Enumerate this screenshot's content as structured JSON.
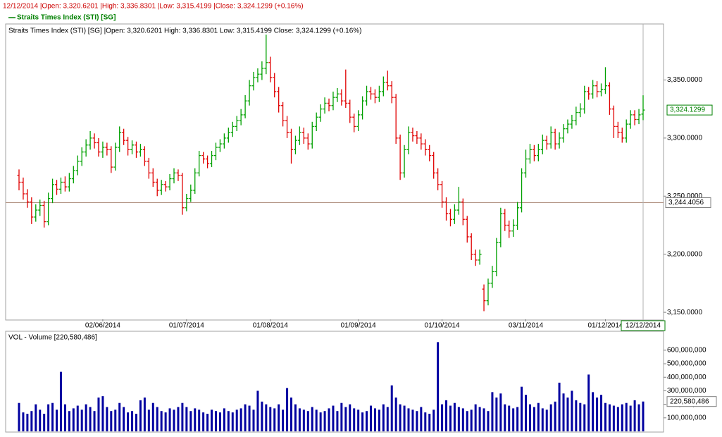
{
  "header": {
    "text": "12/12/2014 |Open: 3,320.6201 |High: 3,336.8301 |Low: 3,315.4199 |Close: 3,324.1299 (+0.16%)"
  },
  "chart_data": [
    {
      "type": "ohlc",
      "title": "Straits Times Index (STI) [SG] |Open: 3,320.6201   High: 3,336.8301   Low: 3,315.4199   Close: 3,324.1299 (+0.16%)",
      "categories": [
        null,
        null,
        null,
        null,
        null,
        null,
        null,
        null,
        null,
        null,
        null,
        null,
        null,
        null,
        null,
        null,
        null,
        null,
        null,
        null,
        "02/06/2014",
        null,
        null,
        null,
        null,
        null,
        null,
        null,
        null,
        null,
        null,
        null,
        null,
        null,
        null,
        null,
        null,
        null,
        null,
        null,
        "01/07/2014",
        null,
        null,
        null,
        null,
        null,
        null,
        null,
        null,
        null,
        null,
        null,
        null,
        null,
        null,
        null,
        null,
        null,
        null,
        null,
        "01/08/2014",
        null,
        null,
        null,
        null,
        null,
        null,
        null,
        null,
        null,
        null,
        null,
        null,
        null,
        null,
        null,
        null,
        null,
        null,
        null,
        null,
        "01/09/2014",
        null,
        null,
        null,
        null,
        null,
        null,
        null,
        null,
        null,
        null,
        null,
        null,
        null,
        null,
        null,
        null,
        null,
        null,
        null,
        "01/10/2014",
        null,
        null,
        null,
        null,
        null,
        null,
        null,
        null,
        null,
        null,
        null,
        null,
        null,
        null,
        null,
        null,
        null,
        null,
        null,
        "03/11/2014",
        null,
        null,
        null,
        null,
        null,
        null,
        null,
        null,
        null,
        null,
        null,
        null,
        null,
        null,
        null,
        null,
        null,
        null,
        "01/12/2014",
        null,
        null,
        null,
        null,
        null,
        null,
        null,
        null,
        "12/12/2014"
      ],
      "series": [
        {
          "name": "Straits Times Index (STI) [SG]",
          "color": "#008000",
          "up_color": "#00a000",
          "down_color": "#e00000",
          "open": [
            3268,
            3262,
            3252,
            3245,
            3232,
            3238,
            3242,
            3228,
            3248,
            3260,
            3256,
            3262,
            3258,
            3265,
            3272,
            3280,
            3288,
            3294,
            3300,
            3296,
            3288,
            3292,
            3290,
            3275,
            3292,
            3305,
            3298,
            3290,
            3294,
            3288,
            3290,
            3280,
            3270,
            3262,
            3255,
            3260,
            3258,
            3265,
            3270,
            3268,
            3240,
            3248,
            3255,
            3270,
            3285,
            3282,
            3278,
            3285,
            3292,
            3295,
            3300,
            3305,
            3310,
            3315,
            3320,
            3332,
            3345,
            3352,
            3355,
            3360,
            3365,
            3352,
            3340,
            3328,
            3315,
            3305,
            3290,
            3298,
            3305,
            3300,
            3295,
            3310,
            3318,
            3325,
            3330,
            3328,
            3335,
            3338,
            3332,
            3330,
            3318,
            3310,
            3320,
            3332,
            3340,
            3338,
            3335,
            3340,
            3348,
            3345,
            3335,
            3300,
            3270,
            3290,
            3305,
            3302,
            3300,
            3295,
            3290,
            3285,
            3270,
            3260,
            3245,
            3235,
            3230,
            3238,
            3245,
            3230,
            3215,
            3200,
            3195,
            3170,
            3160,
            3175,
            3185,
            3210,
            3235,
            3225,
            3220,
            3225,
            3240,
            3270,
            3282,
            3290,
            3285,
            3290,
            3298,
            3295,
            3305,
            3295,
            3300,
            3308,
            3312,
            3315,
            3322,
            3325,
            3340,
            3338,
            3345,
            3340,
            3342,
            3345,
            3325,
            3310,
            3305,
            3300,
            3312,
            3320,
            3316,
            3320.6201
          ],
          "high": [
            3273,
            3266,
            3256,
            3249,
            3243,
            3247,
            3246,
            3253,
            3265,
            3264,
            3266,
            3267,
            3270,
            3276,
            3285,
            3292,
            3299,
            3306,
            3304,
            3300,
            3297,
            3296,
            3293,
            3296,
            3310,
            3308,
            3301,
            3298,
            3297,
            3295,
            3293,
            3283,
            3274,
            3265,
            3264,
            3263,
            3269,
            3274,
            3273,
            3270,
            3252,
            3260,
            3274,
            3289,
            3288,
            3285,
            3289,
            3296,
            3299,
            3304,
            3309,
            3314,
            3319,
            3325,
            3337,
            3350,
            3357,
            3360,
            3366,
            3389,
            3370,
            3356,
            3344,
            3331,
            3319,
            3308,
            3302,
            3310,
            3309,
            3304,
            3314,
            3322,
            3329,
            3335,
            3334,
            3340,
            3343,
            3342,
            3359,
            3333,
            3321,
            3324,
            3336,
            3345,
            3344,
            3342,
            3345,
            3353,
            3358,
            3349,
            3338,
            3303,
            3294,
            3310,
            3309,
            3306,
            3304,
            3299,
            3294,
            3288,
            3274,
            3263,
            3249,
            3239,
            3243,
            3258,
            3248,
            3233,
            3218,
            3204,
            3204,
            3174,
            3179,
            3190,
            3214,
            3240,
            3239,
            3229,
            3230,
            3245,
            3274,
            3290,
            3295,
            3294,
            3295,
            3303,
            3302,
            3310,
            3308,
            3305,
            3312,
            3316,
            3320,
            3327,
            3330,
            3345,
            3344,
            3350,
            3349,
            3347,
            3361,
            3348,
            3328,
            3314,
            3309,
            3316,
            3324,
            3324,
            3325,
            3336.8301
          ],
          "low": [
            3255,
            3247,
            3240,
            3226,
            3228,
            3233,
            3223,
            3225,
            3244,
            3251,
            3252,
            3254,
            3254,
            3261,
            3268,
            3276,
            3284,
            3290,
            3291,
            3284,
            3283,
            3285,
            3270,
            3272,
            3288,
            3294,
            3285,
            3286,
            3283,
            3284,
            3276,
            3265,
            3258,
            3250,
            3251,
            3254,
            3255,
            3261,
            3263,
            3234,
            3237,
            3245,
            3252,
            3267,
            3278,
            3274,
            3275,
            3281,
            3288,
            3291,
            3296,
            3301,
            3306,
            3311,
            3317,
            3328,
            3341,
            3348,
            3350,
            3355,
            3348,
            3335,
            3322,
            3310,
            3300,
            3278,
            3286,
            3294,
            3295,
            3290,
            3291,
            3306,
            3314,
            3321,
            3323,
            3324,
            3331,
            3328,
            3326,
            3313,
            3305,
            3306,
            3316,
            3328,
            3333,
            3330,
            3331,
            3336,
            3341,
            3330,
            3295,
            3264,
            3266,
            3286,
            3297,
            3295,
            3290,
            3285,
            3280,
            3265,
            3255,
            3240,
            3229,
            3224,
            3226,
            3234,
            3225,
            3210,
            3195,
            3190,
            3191,
            3151,
            3156,
            3171,
            3181,
            3206,
            3220,
            3214,
            3215,
            3221,
            3236,
            3266,
            3278,
            3280,
            3280,
            3286,
            3290,
            3291,
            3290,
            3291,
            3296,
            3304,
            3308,
            3311,
            3318,
            3321,
            3333,
            3334,
            3335,
            3336,
            3338,
            3320,
            3300,
            3300,
            3296,
            3296,
            3308,
            3311,
            3312,
            3315.4199
          ],
          "close": [
            3262,
            3252,
            3245,
            3232,
            3238,
            3242,
            3228,
            3248,
            3260,
            3256,
            3262,
            3258,
            3265,
            3272,
            3280,
            3288,
            3294,
            3300,
            3296,
            3288,
            3292,
            3290,
            3275,
            3292,
            3305,
            3298,
            3290,
            3294,
            3288,
            3290,
            3280,
            3270,
            3262,
            3255,
            3260,
            3258,
            3265,
            3270,
            3268,
            3240,
            3248,
            3255,
            3270,
            3285,
            3282,
            3278,
            3285,
            3292,
            3295,
            3300,
            3305,
            3310,
            3315,
            3320,
            3332,
            3345,
            3352,
            3355,
            3360,
            3365,
            3352,
            3340,
            3328,
            3315,
            3305,
            3290,
            3298,
            3305,
            3300,
            3295,
            3310,
            3318,
            3325,
            3330,
            3328,
            3335,
            3338,
            3332,
            3330,
            3318,
            3310,
            3320,
            3332,
            3340,
            3338,
            3335,
            3340,
            3348,
            3345,
            3335,
            3300,
            3270,
            3290,
            3305,
            3302,
            3300,
            3295,
            3290,
            3285,
            3270,
            3260,
            3245,
            3235,
            3230,
            3238,
            3245,
            3230,
            3215,
            3200,
            3195,
            3200,
            3160,
            3175,
            3185,
            3210,
            3235,
            3225,
            3220,
            3225,
            3240,
            3270,
            3282,
            3290,
            3285,
            3290,
            3298,
            3295,
            3305,
            3295,
            3300,
            3308,
            3312,
            3315,
            3322,
            3325,
            3340,
            3338,
            3345,
            3340,
            3342,
            3345,
            3325,
            3310,
            3305,
            3300,
            3312,
            3320,
            3316,
            3320,
            3324.1299
          ]
        }
      ],
      "ylim": [
        3144,
        3397
      ],
      "yticks": [
        {
          "value": 3150,
          "label": "3,150.0000"
        },
        {
          "value": 3200,
          "label": "3,200.0000"
        },
        {
          "value": 3250,
          "label": "3,250.0000"
        },
        {
          "value": 3300,
          "label": "3,300.0000"
        },
        {
          "value": 3350,
          "label": "3,350.0000"
        }
      ],
      "last_label": "3,324.1299",
      "crosshair": {
        "value": 3244.4056,
        "label": "3,244.4056"
      }
    },
    {
      "type": "bar",
      "title": "VOL - Volume [220,580,486]",
      "color": "#0000a0",
      "values": [
        210000000,
        140000000,
        130000000,
        150000000,
        200000000,
        160000000,
        130000000,
        200000000,
        210000000,
        160000000,
        440000000,
        200000000,
        150000000,
        170000000,
        190000000,
        160000000,
        200000000,
        180000000,
        150000000,
        250000000,
        260000000,
        180000000,
        150000000,
        160000000,
        210000000,
        180000000,
        140000000,
        150000000,
        130000000,
        230000000,
        250000000,
        160000000,
        210000000,
        180000000,
        150000000,
        140000000,
        170000000,
        160000000,
        180000000,
        210000000,
        180000000,
        150000000,
        170000000,
        160000000,
        140000000,
        130000000,
        160000000,
        150000000,
        140000000,
        170000000,
        150000000,
        140000000,
        160000000,
        170000000,
        200000000,
        190000000,
        160000000,
        300000000,
        220000000,
        200000000,
        180000000,
        170000000,
        200000000,
        160000000,
        320000000,
        250000000,
        200000000,
        170000000,
        160000000,
        150000000,
        180000000,
        160000000,
        140000000,
        150000000,
        170000000,
        190000000,
        150000000,
        210000000,
        180000000,
        200000000,
        170000000,
        160000000,
        140000000,
        150000000,
        190000000,
        170000000,
        160000000,
        200000000,
        180000000,
        340000000,
        250000000,
        200000000,
        190000000,
        170000000,
        160000000,
        150000000,
        180000000,
        140000000,
        130000000,
        160000000,
        660000000,
        200000000,
        230000000,
        190000000,
        210000000,
        180000000,
        170000000,
        150000000,
        160000000,
        200000000,
        180000000,
        170000000,
        150000000,
        290000000,
        250000000,
        280000000,
        200000000,
        190000000,
        170000000,
        180000000,
        330000000,
        270000000,
        200000000,
        180000000,
        210000000,
        170000000,
        160000000,
        200000000,
        220000000,
        360000000,
        280000000,
        250000000,
        300000000,
        230000000,
        210000000,
        200000000,
        420000000,
        290000000,
        250000000,
        270000000,
        210000000,
        200000000,
        190000000,
        180000000,
        200000000,
        210000000,
        190000000,
        230000000,
        200000000,
        220580486
      ],
      "ylim": [
        0,
        740000000
      ],
      "yticks": [
        {
          "value": 100000000,
          "label": "100,000,000"
        },
        {
          "value": 200000000,
          "label": "200,000,000"
        },
        {
          "value": 300000000,
          "label": "300,000,000"
        },
        {
          "value": 400000000,
          "label": "400,000,000"
        },
        {
          "value": 500000000,
          "label": "500,000,000"
        },
        {
          "value": 600000000,
          "label": "600,000,000"
        }
      ],
      "last_label": "220,580,486"
    }
  ]
}
